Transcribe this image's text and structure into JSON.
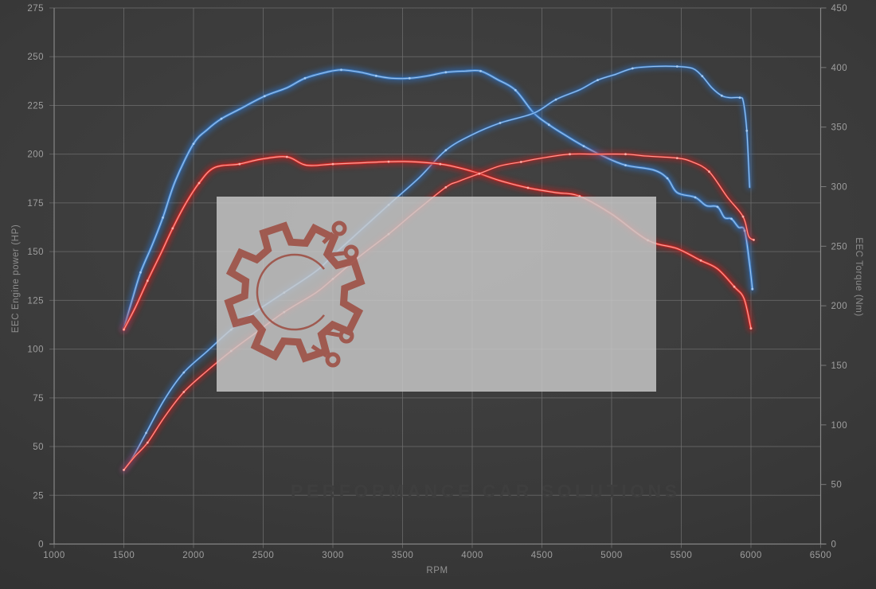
{
  "chart": {
    "x_axis": {
      "title": "RPM",
      "min": 1000,
      "max": 6500,
      "ticks": [
        1000,
        1500,
        2000,
        2500,
        3000,
        3500,
        4000,
        4500,
        5000,
        5500,
        6000,
        6500
      ]
    },
    "left_axis": {
      "title": "EEC Engine power (HP)",
      "min": 0,
      "max": 275,
      "ticks": [
        0,
        25,
        50,
        75,
        100,
        125,
        150,
        175,
        200,
        225,
        250,
        275
      ]
    },
    "right_axis": {
      "title": "EEC Torque (Nm)",
      "min": 0,
      "max": 450,
      "ticks": [
        0,
        50,
        100,
        150,
        200,
        250,
        300,
        350,
        400,
        450
      ]
    }
  },
  "watermark": {
    "text": "PERFORMANCE CAR SOLUTIONS"
  },
  "colors": {
    "background": "#3a3a3a",
    "grid": "#6e6e6e",
    "spine": "#8b8b8b",
    "tick_label": "#9e9e9e",
    "blue_glow": "#2e6fc0",
    "blue_main": "#3d7fc9",
    "blue_core": "#a8cdf3",
    "red_glow": "#c21f1f",
    "red_main": "#d92b27",
    "red_core": "#ffb3ac",
    "watermark_box": "#cacaca",
    "logo_red": "#9d4b40",
    "watermark_text": "#3e3e3e"
  },
  "chart_data": {
    "type": "line",
    "title": "",
    "xlabel": "RPM",
    "ylabel_left": "EEC Engine power (HP)",
    "ylabel_right": "EEC Torque (Nm)",
    "xlim": [
      1000,
      6500
    ],
    "ylim_left": [
      0,
      275
    ],
    "ylim_right": [
      0,
      450
    ],
    "grid": true,
    "legend": "none",
    "series": [
      {
        "name": "blue-torque",
        "axis": "right",
        "unit": "Nm",
        "color": "blue",
        "kind": "torque",
        "points": [
          [
            1500,
            181
          ],
          [
            1560,
            205
          ],
          [
            1620,
            228
          ],
          [
            1700,
            250
          ],
          [
            1780,
            274
          ],
          [
            1870,
            305
          ],
          [
            2000,
            336
          ],
          [
            2100,
            348
          ],
          [
            2200,
            357
          ],
          [
            2330,
            365
          ],
          [
            2510,
            376
          ],
          [
            2670,
            383
          ],
          [
            2800,
            391
          ],
          [
            2950,
            396
          ],
          [
            3060,
            398
          ],
          [
            3200,
            396
          ],
          [
            3310,
            393
          ],
          [
            3420,
            391
          ],
          [
            3550,
            391
          ],
          [
            3680,
            393
          ],
          [
            3810,
            396
          ],
          [
            3950,
            397
          ],
          [
            4060,
            397
          ],
          [
            4180,
            390
          ],
          [
            4310,
            381
          ],
          [
            4440,
            362
          ],
          [
            4550,
            352
          ],
          [
            4670,
            343
          ],
          [
            4800,
            334
          ],
          [
            4950,
            325
          ],
          [
            5100,
            318
          ],
          [
            5300,
            314
          ],
          [
            5400,
            307
          ],
          [
            5470,
            295
          ],
          [
            5600,
            291
          ],
          [
            5680,
            284
          ],
          [
            5760,
            283
          ],
          [
            5810,
            274
          ],
          [
            5860,
            273
          ],
          [
            5910,
            266
          ],
          [
            5955,
            263
          ],
          [
            5990,
            235
          ],
          [
            6010,
            214
          ]
        ]
      },
      {
        "name": "blue-power",
        "axis": "left",
        "unit": "HP",
        "color": "blue",
        "kind": "power",
        "points": [
          [
            1500,
            38
          ],
          [
            1560,
            44
          ],
          [
            1660,
            57
          ],
          [
            1790,
            74
          ],
          [
            1930,
            88
          ],
          [
            2100,
            99
          ],
          [
            2270,
            110
          ],
          [
            2440,
            119
          ],
          [
            2650,
            129
          ],
          [
            2880,
            140
          ],
          [
            3000,
            148
          ],
          [
            3200,
            161
          ],
          [
            3400,
            174
          ],
          [
            3620,
            188
          ],
          [
            3810,
            202
          ],
          [
            4000,
            210
          ],
          [
            4200,
            216
          ],
          [
            4440,
            221
          ],
          [
            4600,
            228
          ],
          [
            4770,
            233
          ],
          [
            4900,
            238
          ],
          [
            5030,
            241
          ],
          [
            5150,
            244
          ],
          [
            5300,
            245
          ],
          [
            5470,
            245
          ],
          [
            5580,
            244
          ],
          [
            5650,
            240
          ],
          [
            5720,
            234
          ],
          [
            5790,
            230
          ],
          [
            5850,
            229
          ],
          [
            5920,
            229
          ],
          [
            5945,
            227
          ],
          [
            5970,
            212
          ],
          [
            5990,
            183
          ]
        ]
      },
      {
        "name": "red-torque",
        "axis": "right",
        "unit": "Nm",
        "color": "red",
        "kind": "torque",
        "points": [
          [
            1500,
            180
          ],
          [
            1580,
            198
          ],
          [
            1670,
            221
          ],
          [
            1770,
            245
          ],
          [
            1850,
            265
          ],
          [
            1940,
            285
          ],
          [
            2040,
            303
          ],
          [
            2150,
            316
          ],
          [
            2330,
            319
          ],
          [
            2480,
            323
          ],
          [
            2670,
            325
          ],
          [
            2810,
            318
          ],
          [
            3000,
            319
          ],
          [
            3200,
            320
          ],
          [
            3400,
            321
          ],
          [
            3560,
            321
          ],
          [
            3770,
            319
          ],
          [
            3900,
            316
          ],
          [
            4050,
            311
          ],
          [
            4200,
            305
          ],
          [
            4400,
            299
          ],
          [
            4600,
            295
          ],
          [
            4770,
            292
          ],
          [
            5000,
            277
          ],
          [
            5260,
            255
          ],
          [
            5470,
            248
          ],
          [
            5640,
            238
          ],
          [
            5760,
            231
          ],
          [
            5880,
            216
          ],
          [
            5950,
            206
          ],
          [
            6000,
            181
          ]
        ]
      },
      {
        "name": "red-power",
        "axis": "left",
        "unit": "HP",
        "color": "red",
        "kind": "power",
        "points": [
          [
            1500,
            38
          ],
          [
            1580,
            45
          ],
          [
            1670,
            52
          ],
          [
            1790,
            65
          ],
          [
            1930,
            78
          ],
          [
            2100,
            89
          ],
          [
            2270,
            99
          ],
          [
            2440,
            108
          ],
          [
            2650,
            119
          ],
          [
            2880,
            129
          ],
          [
            3000,
            136
          ],
          [
            3200,
            148
          ],
          [
            3400,
            159
          ],
          [
            3600,
            171
          ],
          [
            3810,
            183
          ],
          [
            3900,
            186
          ],
          [
            4050,
            190
          ],
          [
            4200,
            194
          ],
          [
            4350,
            196
          ],
          [
            4500,
            198
          ],
          [
            4700,
            200
          ],
          [
            4900,
            200
          ],
          [
            5100,
            200
          ],
          [
            5250,
            199
          ],
          [
            5470,
            198
          ],
          [
            5580,
            196
          ],
          [
            5700,
            191
          ],
          [
            5830,
            178
          ],
          [
            5943,
            168
          ],
          [
            5983,
            158
          ],
          [
            6020,
            156
          ]
        ]
      }
    ]
  }
}
